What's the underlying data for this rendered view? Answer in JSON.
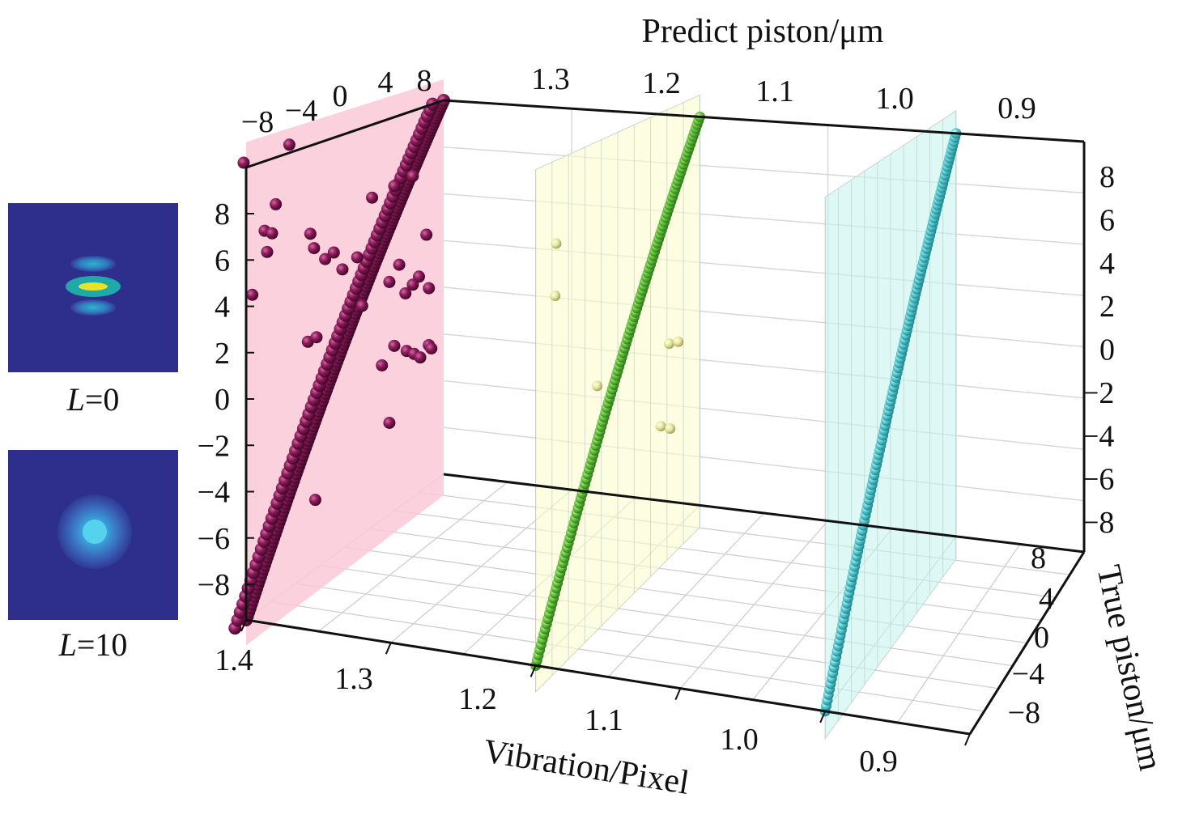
{
  "chart_data": {
    "type": "scatter",
    "projection": "3d",
    "grid": true,
    "axes": {
      "top": {
        "title": "Predict piston/μm",
        "ticks": [
          "1.3",
          "1.2",
          "1.1",
          "1.0",
          "0.9"
        ]
      },
      "bottom": {
        "title": "Vibration/Pixel",
        "ticks": [
          "1.4",
          "1.3",
          "1.2",
          "1.1",
          "1.0",
          "0.9"
        ],
        "range": [
          0.9,
          1.4
        ]
      },
      "predict_piston_left": {
        "ticks": [
          "−8",
          "−4",
          "0",
          "4",
          "8"
        ],
        "range": [
          -8,
          8
        ]
      },
      "z_left": {
        "ticks": [
          "8",
          "6",
          "4",
          "2",
          "0",
          "−2",
          "−4",
          "−6",
          "−8"
        ],
        "range": [
          -8,
          8
        ]
      },
      "z_right": {
        "ticks": [
          "8",
          "6",
          "4",
          "2",
          "0",
          "−2",
          "−4",
          "−6",
          "−8"
        ],
        "range": [
          -8,
          8
        ]
      },
      "true_piston": {
        "title": "True piston/μm",
        "ticks": [
          "8",
          "4",
          "0",
          "−4",
          "−8"
        ],
        "range": [
          -8,
          8
        ]
      }
    },
    "series": [
      {
        "vibration": 1.4,
        "color": "#8b1a5a",
        "plane_color": "#f9c9d6",
        "line": {
          "from": [
            -8,
            -8
          ],
          "to": [
            8,
            8
          ]
        },
        "outliers": [
          [
            -8.2,
            8.2
          ],
          [
            -4.5,
            8.3
          ],
          [
            -5.6,
            6.3
          ],
          [
            -6.5,
            5.5
          ],
          [
            -5.9,
            5.3
          ],
          [
            -6.3,
            4.7
          ],
          [
            -7.5,
            3.4
          ],
          [
            -2.8,
            4.7
          ],
          [
            -2.5,
            4.1
          ],
          [
            -1.6,
            3.5
          ],
          [
            2.2,
            5.1
          ],
          [
            4.0,
            5.2
          ],
          [
            5.5,
            5.3
          ],
          [
            -0.9,
            3.6
          ],
          [
            1.0,
            3.0
          ],
          [
            -0.2,
            2.8
          ],
          [
            6.6,
            2.6
          ],
          [
            6.0,
            1.0
          ],
          [
            3.6,
            1.4
          ],
          [
            4.4,
            1.9
          ],
          [
            -3.0,
            0.7
          ],
          [
            -2.3,
            0.7
          ],
          [
            1.4,
            1.0
          ],
          [
            4.9,
            0.6
          ],
          [
            5.5,
            0.8
          ],
          [
            6.8,
            0.3
          ],
          [
            3.0,
            -1.8
          ],
          [
            4.0,
            -1.3
          ],
          [
            5.0,
            -1.8
          ],
          [
            5.6,
            -2.1
          ],
          [
            6.1,
            -2.4
          ],
          [
            6.8,
            -2.1
          ],
          [
            3.6,
            -4.3
          ],
          [
            -2.4,
            -5.4
          ],
          [
            7.0,
            -2.3
          ]
        ]
      },
      {
        "vibration": 1.2,
        "color": "#5fbf3a",
        "plane_color": "#fbfbcf",
        "line": {
          "from": [
            -8,
            -8
          ],
          "to": [
            8,
            8
          ]
        },
        "outliers": [
          [
            -6.0,
            6.0
          ],
          [
            -6.1,
            4.2
          ],
          [
            -2.0,
            0.0
          ],
          [
            5.0,
            -0.4
          ],
          [
            5.9,
            -0.6
          ],
          [
            4.2,
            -3.4
          ],
          [
            5.1,
            -3.8
          ]
        ]
      },
      {
        "vibration": 1.0,
        "color": "#4fc6cc",
        "plane_color": "#c8f3f0",
        "line": {
          "from": [
            -8,
            -8
          ],
          "to": [
            8,
            8
          ]
        },
        "outliers": []
      }
    ]
  },
  "insets": [
    {
      "label_var": "L",
      "label_rest": "=0"
    },
    {
      "label_var": "L",
      "label_rest": "=10"
    }
  ]
}
